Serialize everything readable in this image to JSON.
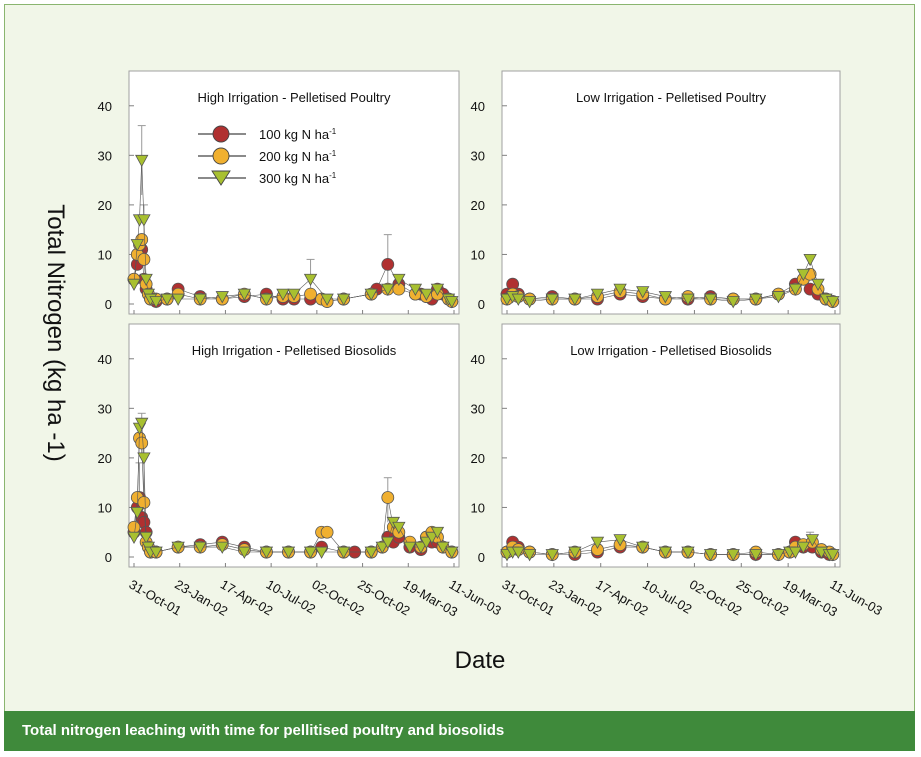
{
  "caption": "Total nitrogen leaching with time for pellitised poultry and biosolids",
  "colors": {
    "frame_background": "#f1f6e8",
    "caption_bar": "#3f8a3b",
    "series_100": "#b03030",
    "series_200": "#f0b030",
    "series_300": "#a8c030"
  },
  "chart_data": {
    "type": "scatter",
    "ylabel": "Total Nitrogen (kg ha -1)",
    "xlabel": "Date",
    "x_tick_labels": [
      "31-Oct-01",
      "23-Jan-02",
      "17-Apr-02",
      "10-Jul-02",
      "02-Oct-02",
      "25-Oct-02",
      "19-Mar-03",
      "11-Jun-03"
    ],
    "y_tick_labels": [
      "0",
      "10",
      "20",
      "30",
      "40"
    ],
    "ylim": [
      0,
      45
    ],
    "legend": {
      "placement": "inside top-left of first panel",
      "entries": [
        {
          "label": "100 kg N ha",
          "sup": "-1",
          "marker": "circle",
          "color": "#b03030"
        },
        {
          "label": "200 kg N ha",
          "sup": "-1",
          "marker": "circle",
          "color": "#f0b030"
        },
        {
          "label": "300 kg N ha",
          "sup": "-1",
          "marker": "triangle-down",
          "color": "#a8c030"
        }
      ]
    },
    "panels": [
      {
        "title": "High Irrigation - Pelletised Poultry",
        "series": [
          {
            "name": "100 kg N ha-1",
            "x": [
              0,
              3,
              5,
              7,
              9,
              11,
              13,
              15,
              20,
              30,
              40,
              60,
              80,
              100,
              120,
              135,
              145,
              160,
              175,
              190,
              215,
              220,
              230,
              240,
              255,
              260,
              265,
              270,
              275,
              280,
              285,
              288
            ],
            "y": [
              5,
              8,
              10,
              11,
              5,
              3,
              2,
              1,
              0.5,
              1,
              3,
              1.5,
              1,
              1.5,
              2,
              1,
              1,
              1,
              0.5,
              1,
              2,
              3,
              8,
              4,
              2,
              2,
              1.5,
              1,
              3,
              2,
              1,
              0.5
            ]
          },
          {
            "name": "200 kg N ha-1",
            "x": [
              0,
              3,
              5,
              7,
              9,
              11,
              13,
              15,
              20,
              30,
              40,
              60,
              80,
              100,
              120,
              135,
              145,
              160,
              170,
              175,
              190,
              215,
              230,
              240,
              255,
              265,
              275,
              285,
              288
            ],
            "y": [
              5,
              10,
              12,
              13,
              9,
              4,
              2,
              1,
              1,
              1,
              2,
              1,
              1,
              2,
              1,
              1.5,
              1.5,
              2,
              1,
              0.5,
              1,
              2,
              3,
              3,
              2,
              1.5,
              2,
              1,
              0.5
            ]
          },
          {
            "name": "300 kg N ha-1",
            "x": [
              0,
              3,
              5,
              7,
              9,
              11,
              13,
              15,
              20,
              30,
              40,
              60,
              80,
              100,
              120,
              135,
              145,
              160,
              175,
              190,
              215,
              230,
              240,
              255,
              265,
              275,
              285,
              288
            ],
            "y": [
              4,
              12,
              17,
              29,
              17,
              5,
              2,
              1,
              0.5,
              1,
              1,
              1,
              1.5,
              2,
              1,
              2,
              2,
              5,
              1,
              1,
              2,
              3,
              5,
              3,
              2,
              3,
              1,
              0.5
            ]
          }
        ]
      },
      {
        "title": "Low Irrigation - Pelletised Poultry",
        "series": [
          {
            "name": "100 kg N ha-1",
            "x": [
              0,
              5,
              10,
              20,
              40,
              60,
              80,
              100,
              120,
              140,
              160,
              180,
              200,
              220,
              240,
              255,
              262,
              268,
              275,
              282,
              288
            ],
            "y": [
              2,
              4,
              2,
              1,
              1.5,
              1,
              1,
              2,
              1.5,
              1,
              1,
              1.5,
              1,
              1,
              2,
              4,
              5,
              3,
              2,
              1,
              0.5
            ]
          },
          {
            "name": "200 kg N ha-1",
            "x": [
              0,
              5,
              10,
              20,
              40,
              60,
              80,
              100,
              120,
              140,
              160,
              180,
              200,
              220,
              240,
              255,
              262,
              268,
              275,
              282,
              288
            ],
            "y": [
              1,
              2,
              1.5,
              1,
              1,
              1,
              1.5,
              2.5,
              2,
              1,
              1.5,
              1,
              1,
              1,
              2,
              3,
              5,
              6,
              3,
              1,
              0.5
            ]
          },
          {
            "name": "300 kg N ha-1",
            "x": [
              0,
              5,
              10,
              20,
              40,
              60,
              80,
              100,
              120,
              140,
              160,
              180,
              200,
              220,
              240,
              255,
              262,
              268,
              275,
              282,
              288
            ],
            "y": [
              1,
              1.5,
              1,
              0.5,
              1,
              1,
              2,
              3,
              2.5,
              1.5,
              1,
              1,
              0.5,
              1,
              1.5,
              3,
              6,
              9,
              4,
              1,
              0.5
            ]
          }
        ]
      },
      {
        "title": "High Irrigation - Pelletised Biosolids",
        "series": [
          {
            "name": "100 kg N ha-1",
            "x": [
              0,
              3,
              5,
              7,
              9,
              11,
              13,
              15,
              20,
              40,
              60,
              80,
              100,
              120,
              140,
              160,
              170,
              190,
              200,
              215,
              225,
              230,
              235,
              240,
              250,
              260,
              265,
              270,
              275,
              280,
              288
            ],
            "y": [
              5,
              10,
              12,
              8,
              7,
              5,
              2,
              1,
              1,
              2,
              2.5,
              3,
              2,
              1,
              1,
              1,
              2,
              1,
              1,
              1,
              2,
              4,
              3,
              4,
              2,
              1.5,
              4,
              3,
              3,
              2,
              1
            ]
          },
          {
            "name": "200 kg N ha-1",
            "x": [
              0,
              3,
              5,
              7,
              9,
              11,
              13,
              15,
              20,
              40,
              60,
              80,
              100,
              120,
              140,
              160,
              170,
              175,
              190,
              215,
              225,
              230,
              235,
              240,
              250,
              260,
              265,
              270,
              275,
              280,
              288
            ],
            "y": [
              6,
              12,
              24,
              23,
              11,
              3,
              2,
              1,
              1,
              2,
              2,
              2.5,
              1.5,
              1,
              1,
              1,
              5,
              5,
              1,
              1,
              2,
              12,
              6,
              5,
              3,
              2,
              4,
              5,
              4,
              2,
              1
            ]
          },
          {
            "name": "300 kg N ha-1",
            "x": [
              0,
              3,
              5,
              7,
              9,
              11,
              13,
              15,
              20,
              40,
              60,
              80,
              100,
              120,
              140,
              160,
              170,
              190,
              215,
              225,
              230,
              235,
              240,
              250,
              260,
              265,
              270,
              275,
              280,
              288
            ],
            "y": [
              4,
              9,
              26,
              27,
              20,
              4,
              2,
              1,
              1,
              2,
              2,
              2,
              1,
              1,
              1,
              1,
              1,
              1,
              1,
              2,
              3,
              7,
              6,
              2,
              2,
              3,
              4,
              5,
              2,
              1
            ]
          }
        ]
      },
      {
        "title": "Low Irrigation - Pelletised Biosolids",
        "series": [
          {
            "name": "100 kg N ha-1",
            "x": [
              0,
              5,
              10,
              20,
              40,
              60,
              80,
              100,
              120,
              140,
              160,
              180,
              200,
              220,
              240,
              250,
              255,
              262,
              270,
              278,
              285,
              288
            ],
            "y": [
              1,
              3,
              2,
              1,
              0.5,
              0.5,
              1,
              2,
              2,
              1,
              1,
              0.5,
              0.5,
              0.5,
              0.5,
              1,
              3,
              2,
              2,
              1,
              0.5,
              0.5
            ]
          },
          {
            "name": "200 kg N ha-1",
            "x": [
              0,
              5,
              10,
              20,
              40,
              60,
              80,
              100,
              120,
              140,
              160,
              180,
              200,
              220,
              240,
              250,
              255,
              262,
              270,
              278,
              285,
              288
            ],
            "y": [
              1,
              2,
              1.5,
              1,
              0.5,
              1,
              1.5,
              2.5,
              2,
              1,
              1,
              0.5,
              0.5,
              1,
              0.5,
              1,
              2,
              2.5,
              3,
              1.5,
              1,
              0.5
            ]
          },
          {
            "name": "300 kg N ha-1",
            "x": [
              0,
              5,
              10,
              20,
              40,
              60,
              80,
              100,
              120,
              140,
              160,
              180,
              200,
              220,
              240,
              250,
              255,
              262,
              270,
              278,
              285,
              288
            ],
            "y": [
              0.5,
              1,
              1,
              0.5,
              0.5,
              1,
              3,
              3.5,
              2,
              1,
              1,
              0.5,
              0.5,
              0.5,
              0.5,
              1,
              1,
              2,
              3.5,
              1,
              0.5,
              0.5
            ]
          }
        ]
      }
    ],
    "error_bars": [
      {
        "panel": 0,
        "x": 7,
        "lo": 22,
        "hi": 36
      },
      {
        "panel": 0,
        "x": 9,
        "lo": 10,
        "hi": 20
      },
      {
        "panel": 0,
        "x": 230,
        "lo": 3,
        "hi": 14
      },
      {
        "panel": 0,
        "x": 160,
        "lo": 2,
        "hi": 9
      },
      {
        "panel": 2,
        "x": 7,
        "lo": 20,
        "hi": 29
      },
      {
        "panel": 2,
        "x": 9,
        "lo": 10,
        "hi": 23
      },
      {
        "panel": 2,
        "x": 5,
        "lo": 5,
        "hi": 19
      },
      {
        "panel": 2,
        "x": 230,
        "lo": 7,
        "hi": 16
      },
      {
        "panel": 3,
        "x": 268,
        "lo": 2,
        "hi": 5
      }
    ]
  }
}
